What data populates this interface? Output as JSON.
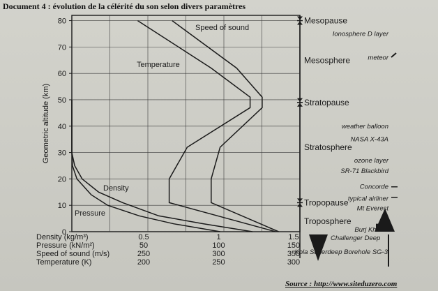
{
  "document_title": "Document 4 : évolution de la célérité du son selon divers paramètres",
  "source": "Source : http://www.siteduzero.com",
  "colors": {
    "ink": "#1a1a1a",
    "paper": "#cfcfc8",
    "grid": "#3a3a3a"
  },
  "chart_data": {
    "type": "line",
    "ylabel": "Geometric altitude (km)",
    "ylim": [
      0,
      82
    ],
    "yticks": [
      0,
      10,
      20,
      30,
      40,
      50,
      60,
      70,
      80
    ],
    "grid": true,
    "x_axes": [
      {
        "label": "Density (kg/m³)",
        "ticks": [
          "0.5",
          "1",
          "1.5"
        ],
        "values": [
          0.5,
          1,
          1.5
        ]
      },
      {
        "label": "Pressure (kN/m²)",
        "ticks": [
          "50",
          "100",
          "150"
        ],
        "values": [
          50,
          100,
          150
        ]
      },
      {
        "label": "Speed of sound (m/s)",
        "ticks": [
          "250",
          "300",
          "350"
        ],
        "values": [
          250,
          300,
          350
        ]
      },
      {
        "label": "Temperature (K)",
        "ticks": [
          "200",
          "250",
          "300"
        ],
        "values": [
          200,
          250,
          300
        ]
      }
    ],
    "series": [
      {
        "name": "Speed of sound",
        "axis": 2,
        "points": [
          [
            340,
            0
          ],
          [
            295,
            11
          ],
          [
            295,
            20
          ],
          [
            301,
            32
          ],
          [
            329,
            47
          ],
          [
            329,
            51
          ],
          [
            312,
            62
          ],
          [
            269,
            80
          ]
        ]
      },
      {
        "name": "Temperature",
        "axis": 3,
        "points": [
          [
            288,
            0
          ],
          [
            217,
            11
          ],
          [
            217,
            20
          ],
          [
            229,
            32
          ],
          [
            271,
            47
          ],
          [
            271,
            51
          ],
          [
            245,
            62
          ],
          [
            196,
            80
          ]
        ]
      },
      {
        "name": "Density",
        "axis": 0,
        "points": [
          [
            1.225,
            0
          ],
          [
            0.9,
            3
          ],
          [
            0.6,
            6
          ],
          [
            0.36,
            11
          ],
          [
            0.2,
            15
          ],
          [
            0.09,
            20
          ],
          [
            0.04,
            25
          ],
          [
            0.018,
            30
          ],
          [
            0.004,
            40
          ],
          [
            0.001,
            50
          ]
        ]
      },
      {
        "name": "Pressure",
        "axis": 1,
        "points": [
          [
            101,
            0
          ],
          [
            70,
            3
          ],
          [
            47,
            6
          ],
          [
            26,
            10
          ],
          [
            15,
            14
          ],
          [
            5.5,
            20
          ],
          [
            2.5,
            25
          ],
          [
            1.2,
            30
          ],
          [
            0.3,
            40
          ],
          [
            0.08,
            50
          ]
        ]
      }
    ],
    "right_panel": {
      "layers": [
        {
          "name": "Mesopause",
          "altitude": 80
        },
        {
          "name": "Stratopause",
          "altitude": 49
        },
        {
          "name": "Tropopause",
          "altitude": 11
        }
      ],
      "regions": [
        {
          "name": "Mesosphere",
          "altitude": 65
        },
        {
          "name": "Stratosphere",
          "altitude": 32
        },
        {
          "name": "Troposphere",
          "altitude": 4
        }
      ],
      "annotations": [
        {
          "text": "Ionosphere D layer",
          "altitude": 75
        },
        {
          "text": "meteor",
          "altitude": 66
        },
        {
          "text": "weather balloon",
          "altitude": 40
        },
        {
          "text": "NASA X-43A",
          "altitude": 35
        },
        {
          "text": "ozone layer",
          "altitude": 27
        },
        {
          "text": "SR-71 Blackbird",
          "altitude": 23
        },
        {
          "text": "Concorde",
          "altitude": 17
        },
        {
          "text": "typical airliner",
          "altitude": 12.5
        },
        {
          "text": "Mt Everest",
          "altitude": 8.8
        },
        {
          "text": "Burj Khalifa",
          "altitude": 0.8
        }
      ],
      "below_ground": [
        "Challenger Deep",
        "Kola Superdeep Borehole SG-3"
      ]
    }
  }
}
